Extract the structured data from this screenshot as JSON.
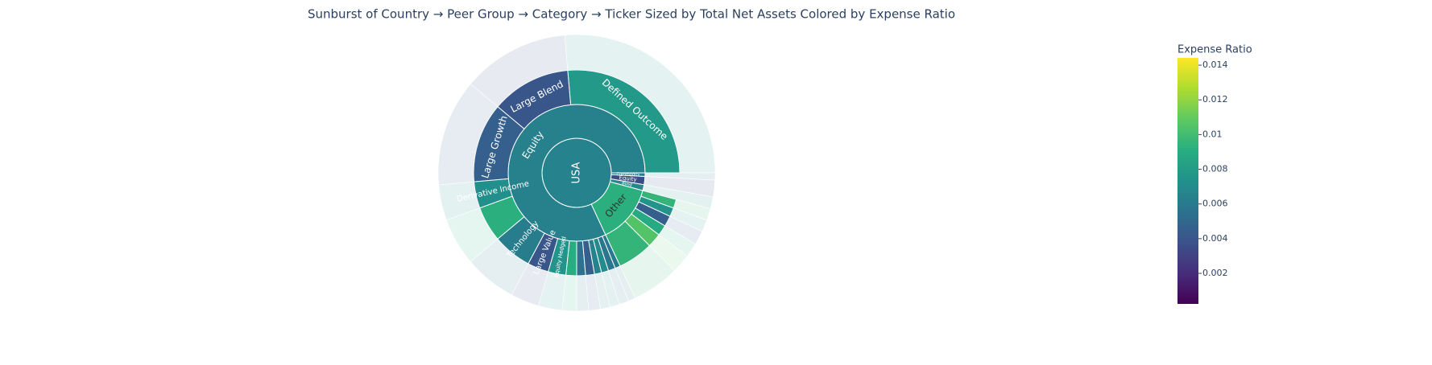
{
  "chart_data": {
    "type": "sunburst",
    "title": "Sunburst of Country → Peer Group → Category → Ticker Sized by Total Net Assets Colored by Expense Ratio",
    "colorbar": {
      "title": "Expense Ratio",
      "colorscale": "viridis",
      "clim": [
        0.00024,
        0.01442
      ],
      "ticks": [
        0.002,
        0.004,
        0.006,
        0.008,
        0.01,
        0.012,
        0.014
      ]
    },
    "root": {
      "label": "USA",
      "value": 360,
      "expense_ratio": 0.0065,
      "children": [
        {
          "label": "Equity",
          "value": 295,
          "expense_ratio": 0.0064,
          "children": [
            {
              "label": "Defined Outcome",
              "value": 95,
              "expense_ratio": 0.0078
            },
            {
              "label": "Large Blend",
              "value": 45,
              "expense_ratio": 0.004
            },
            {
              "label": "Large Growth",
              "value": 45,
              "expense_ratio": 0.0045
            },
            {
              "label": "Derivative Income",
              "value": 15,
              "expense_ratio": 0.0072
            },
            {
              "label": null,
              "value": 20,
              "expense_ratio": 0.0092
            },
            {
              "label": "Technology",
              "value": 22,
              "expense_ratio": 0.0062
            },
            {
              "label": "Large Value",
              "value": 12,
              "expense_ratio": 0.004
            },
            {
              "label": "Equity Hedged",
              "value": 10,
              "expense_ratio": 0.0075
            },
            {
              "label": null,
              "value": 6,
              "expense_ratio": 0.009
            },
            {
              "label": null,
              "value": 5,
              "expense_ratio": 0.0055
            },
            {
              "label": null,
              "value": 5,
              "expense_ratio": 0.0045
            },
            {
              "label": null,
              "value": 4,
              "expense_ratio": 0.0065
            },
            {
              "label": null,
              "value": 4,
              "expense_ratio": 0.007
            },
            {
              "label": null,
              "value": 4,
              "expense_ratio": 0.0058
            },
            {
              "label": null,
              "value": 3,
              "expense_ratio": 0.006
            }
          ]
        },
        {
          "label": "Other",
          "value": 50,
          "expense_ratio": 0.0092,
          "children": [
            {
              "label": null,
              "value": 20,
              "expense_ratio": 0.0095
            },
            {
              "label": null,
              "value": 8,
              "expense_ratio": 0.0105
            },
            {
              "label": null,
              "value": 6,
              "expense_ratio": 0.0088
            },
            {
              "label": null,
              "value": 6,
              "expense_ratio": 0.0045
            },
            {
              "label": null,
              "value": 5,
              "expense_ratio": 0.0075
            },
            {
              "label": null,
              "value": 5,
              "expense_ratio": 0.0095
            }
          ]
        },
        {
          "label": "Bond",
          "value": 5,
          "expense_ratio": 0.0068
        },
        {
          "label": "Equity",
          "value": 7,
          "expense_ratio": 0.0035
        },
        {
          "label": "Commodity",
          "value": 3,
          "expense_ratio": 0.0062
        }
      ]
    }
  }
}
